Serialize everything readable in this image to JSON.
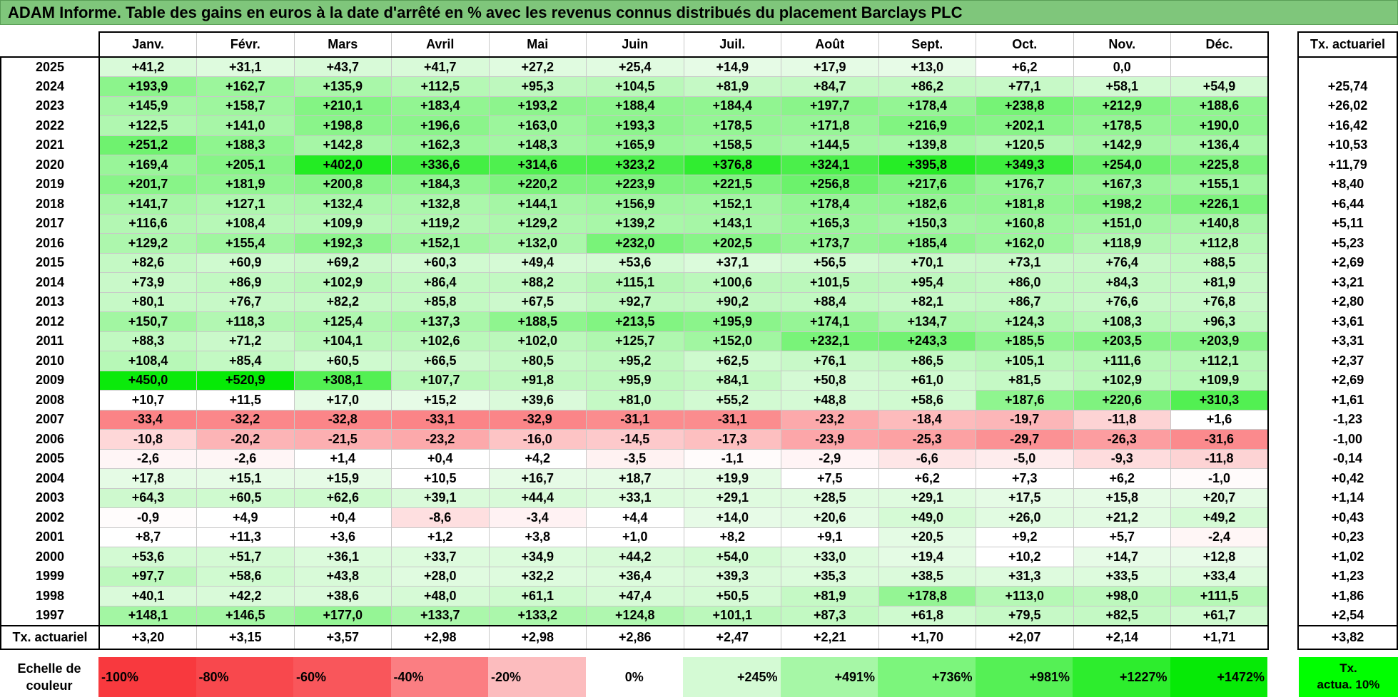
{
  "title": "ADAM Informe. Table des gains en euros à la date d'arrêté en % avec les revenus connus distribués du placement Barclays PLC",
  "months": [
    "Janv.",
    "Févr.",
    "Mars",
    "Avril",
    "Mai",
    "Juin",
    "Juil.",
    "Août",
    "Sept.",
    "Oct.",
    "Nov.",
    "Déc."
  ],
  "rate_header": "Tx. actuariel",
  "rows": [
    {
      "year": "2025",
      "values": [
        "+41,2",
        "+31,1",
        "+43,7",
        "+41,7",
        "+27,2",
        "+25,4",
        "+14,9",
        "+17,9",
        "+13,0",
        "+6,2",
        "0,0",
        ""
      ],
      "rate": ""
    },
    {
      "year": "2024",
      "values": [
        "+193,9",
        "+162,7",
        "+135,9",
        "+112,5",
        "+95,3",
        "+104,5",
        "+81,9",
        "+84,7",
        "+86,2",
        "+77,1",
        "+58,1",
        "+54,9"
      ],
      "rate": "+25,74"
    },
    {
      "year": "2023",
      "values": [
        "+145,9",
        "+158,7",
        "+210,1",
        "+183,4",
        "+193,2",
        "+188,4",
        "+184,4",
        "+197,7",
        "+178,4",
        "+238,8",
        "+212,9",
        "+188,6"
      ],
      "rate": "+26,02"
    },
    {
      "year": "2022",
      "values": [
        "+122,5",
        "+141,0",
        "+198,8",
        "+196,6",
        "+163,0",
        "+193,3",
        "+178,5",
        "+171,8",
        "+216,9",
        "+202,1",
        "+178,5",
        "+190,0"
      ],
      "rate": "+16,42"
    },
    {
      "year": "2021",
      "values": [
        "+251,2",
        "+188,3",
        "+142,8",
        "+162,3",
        "+148,3",
        "+165,9",
        "+158,5",
        "+144,5",
        "+139,8",
        "+120,5",
        "+142,9",
        "+136,4"
      ],
      "rate": "+10,53"
    },
    {
      "year": "2020",
      "values": [
        "+169,4",
        "+205,1",
        "+402,0",
        "+336,6",
        "+314,6",
        "+323,2",
        "+376,8",
        "+324,1",
        "+395,8",
        "+349,3",
        "+254,0",
        "+225,8"
      ],
      "rate": "+11,79"
    },
    {
      "year": "2019",
      "values": [
        "+201,7",
        "+181,9",
        "+200,8",
        "+184,3",
        "+220,2",
        "+223,9",
        "+221,5",
        "+256,8",
        "+217,6",
        "+176,7",
        "+167,3",
        "+155,1"
      ],
      "rate": "+8,40"
    },
    {
      "year": "2018",
      "values": [
        "+141,7",
        "+127,1",
        "+132,4",
        "+132,8",
        "+144,1",
        "+156,9",
        "+152,1",
        "+178,4",
        "+182,6",
        "+181,8",
        "+198,2",
        "+226,1"
      ],
      "rate": "+6,44"
    },
    {
      "year": "2017",
      "values": [
        "+116,6",
        "+108,4",
        "+109,9",
        "+119,2",
        "+129,2",
        "+139,2",
        "+143,1",
        "+165,3",
        "+150,3",
        "+160,8",
        "+151,0",
        "+140,8"
      ],
      "rate": "+5,11"
    },
    {
      "year": "2016",
      "values": [
        "+129,2",
        "+155,4",
        "+192,3",
        "+152,1",
        "+132,0",
        "+232,0",
        "+202,5",
        "+173,7",
        "+185,4",
        "+162,0",
        "+118,9",
        "+112,8"
      ],
      "rate": "+5,23"
    },
    {
      "year": "2015",
      "values": [
        "+82,6",
        "+60,9",
        "+69,2",
        "+60,3",
        "+49,4",
        "+53,6",
        "+37,1",
        "+56,5",
        "+70,1",
        "+73,1",
        "+76,4",
        "+88,5"
      ],
      "rate": "+2,69"
    },
    {
      "year": "2014",
      "values": [
        "+73,9",
        "+86,9",
        "+102,9",
        "+86,4",
        "+88,2",
        "+115,1",
        "+100,6",
        "+101,5",
        "+95,4",
        "+86,0",
        "+84,3",
        "+81,9"
      ],
      "rate": "+3,21"
    },
    {
      "year": "2013",
      "values": [
        "+80,1",
        "+76,7",
        "+82,2",
        "+85,8",
        "+67,5",
        "+92,7",
        "+90,2",
        "+88,4",
        "+82,1",
        "+86,7",
        "+76,6",
        "+76,8"
      ],
      "rate": "+2,80"
    },
    {
      "year": "2012",
      "values": [
        "+150,7",
        "+118,3",
        "+125,4",
        "+137,3",
        "+188,5",
        "+213,5",
        "+195,9",
        "+174,1",
        "+134,7",
        "+124,3",
        "+108,3",
        "+96,3"
      ],
      "rate": "+3,61"
    },
    {
      "year": "2011",
      "values": [
        "+88,3",
        "+71,2",
        "+104,1",
        "+102,6",
        "+102,0",
        "+125,7",
        "+152,0",
        "+232,1",
        "+243,3",
        "+185,5",
        "+203,5",
        "+203,9"
      ],
      "rate": "+3,31"
    },
    {
      "year": "2010",
      "values": [
        "+108,4",
        "+85,4",
        "+60,5",
        "+66,5",
        "+80,5",
        "+95,2",
        "+62,5",
        "+76,1",
        "+86,5",
        "+105,1",
        "+111,6",
        "+112,1"
      ],
      "rate": "+2,37"
    },
    {
      "year": "2009",
      "values": [
        "+450,0",
        "+520,9",
        "+308,1",
        "+107,7",
        "+91,8",
        "+95,9",
        "+84,1",
        "+50,8",
        "+61,0",
        "+81,5",
        "+102,9",
        "+109,9"
      ],
      "rate": "+2,69"
    },
    {
      "year": "2008",
      "values": [
        "+10,7",
        "+11,5",
        "+17,0",
        "+15,2",
        "+39,6",
        "+81,0",
        "+55,2",
        "+48,8",
        "+58,6",
        "+187,6",
        "+220,6",
        "+310,3"
      ],
      "rate": "+1,61"
    },
    {
      "year": "2007",
      "values": [
        "-33,4",
        "-32,2",
        "-32,8",
        "-33,1",
        "-32,9",
        "-31,1",
        "-31,1",
        "-23,2",
        "-18,4",
        "-19,7",
        "-11,8",
        "+1,6"
      ],
      "rate": "-1,23"
    },
    {
      "year": "2006",
      "values": [
        "-10,8",
        "-20,2",
        "-21,5",
        "-23,2",
        "-16,0",
        "-14,5",
        "-17,3",
        "-23,9",
        "-25,3",
        "-29,7",
        "-26,3",
        "-31,6"
      ],
      "rate": "-1,00"
    },
    {
      "year": "2005",
      "values": [
        "-2,6",
        "-2,6",
        "+1,4",
        "+0,4",
        "+4,2",
        "-3,5",
        "-1,1",
        "-2,9",
        "-6,6",
        "-5,0",
        "-9,3",
        "-11,8"
      ],
      "rate": "-0,14"
    },
    {
      "year": "2004",
      "values": [
        "+17,8",
        "+15,1",
        "+15,9",
        "+10,5",
        "+16,7",
        "+18,7",
        "+19,9",
        "+7,5",
        "+6,2",
        "+7,3",
        "+6,2",
        "-1,0"
      ],
      "rate": "+0,42"
    },
    {
      "year": "2003",
      "values": [
        "+64,3",
        "+60,5",
        "+62,6",
        "+39,1",
        "+44,4",
        "+33,1",
        "+29,1",
        "+28,5",
        "+29,1",
        "+17,5",
        "+15,8",
        "+20,7"
      ],
      "rate": "+1,14"
    },
    {
      "year": "2002",
      "values": [
        "-0,9",
        "+4,9",
        "+0,4",
        "-8,6",
        "-3,4",
        "+4,4",
        "+14,0",
        "+20,6",
        "+49,0",
        "+26,0",
        "+21,2",
        "+49,2"
      ],
      "rate": "+0,43"
    },
    {
      "year": "2001",
      "values": [
        "+8,7",
        "+11,3",
        "+3,6",
        "+1,2",
        "+3,8",
        "+1,0",
        "+8,2",
        "+9,1",
        "+20,5",
        "+9,2",
        "+5,7",
        "-2,4"
      ],
      "rate": "+0,23"
    },
    {
      "year": "2000",
      "values": [
        "+53,6",
        "+51,7",
        "+36,1",
        "+33,7",
        "+34,9",
        "+44,2",
        "+54,0",
        "+33,0",
        "+19,4",
        "+10,2",
        "+14,7",
        "+12,8"
      ],
      "rate": "+1,02"
    },
    {
      "year": "1999",
      "values": [
        "+97,7",
        "+58,6",
        "+43,8",
        "+28,0",
        "+32,2",
        "+36,4",
        "+39,3",
        "+35,3",
        "+38,5",
        "+31,3",
        "+33,5",
        "+33,4"
      ],
      "rate": "+1,23"
    },
    {
      "year": "1998",
      "values": [
        "+40,1",
        "+42,2",
        "+38,6",
        "+48,0",
        "+61,1",
        "+47,4",
        "+50,5",
        "+81,9",
        "+178,8",
        "+113,0",
        "+98,0",
        "+111,5"
      ],
      "rate": "+1,86"
    },
    {
      "year": "1997",
      "values": [
        "+148,1",
        "+146,5",
        "+177,0",
        "+133,7",
        "+133,2",
        "+124,8",
        "+101,1",
        "+87,3",
        "+61,8",
        "+79,5",
        "+82,5",
        "+61,7"
      ],
      "rate": "+2,54"
    }
  ],
  "footer": {
    "label": "Tx. actuariel",
    "values": [
      "+3,20",
      "+3,15",
      "+3,57",
      "+2,98",
      "+2,98",
      "+2,86",
      "+2,47",
      "+2,21",
      "+1,70",
      "+2,07",
      "+2,14",
      "+1,71"
    ],
    "rate": "+3,82"
  },
  "scale": {
    "label_line1": "Echelle de",
    "label_line2": "couleur",
    "cells": [
      {
        "label": "-100%",
        "color": "#f8393e",
        "kind": "neg"
      },
      {
        "label": "-80%",
        "color": "#f8484d",
        "kind": "neg"
      },
      {
        "label": "-60%",
        "color": "#f9565b",
        "kind": "neg"
      },
      {
        "label": "-40%",
        "color": "#fb7e82",
        "kind": "neg"
      },
      {
        "label": "-20%",
        "color": "#fcbcbe",
        "kind": "neg"
      },
      {
        "label": "0%",
        "color": "#ffffff",
        "kind": "zero"
      },
      {
        "label": "+245%",
        "color": "#d4fad4",
        "kind": "pos"
      },
      {
        "label": "+491%",
        "color": "#a6f7a6",
        "kind": "pos"
      },
      {
        "label": "+736%",
        "color": "#7cf57c",
        "kind": "pos"
      },
      {
        "label": "+981%",
        "color": "#55f055",
        "kind": "pos"
      },
      {
        "label": "+1227%",
        "color": "#2ded2d",
        "kind": "pos"
      },
      {
        "label": "+1472%",
        "color": "#06ea06",
        "kind": "pos"
      }
    ],
    "rate_label_line1": "Tx.",
    "rate_label_line2": "actua. 10%",
    "rate_color": "#00ff00"
  },
  "colors": {
    "title_background": "#7fc67b",
    "positive_max": "#06ea06",
    "negative_max": "#f8393e"
  }
}
